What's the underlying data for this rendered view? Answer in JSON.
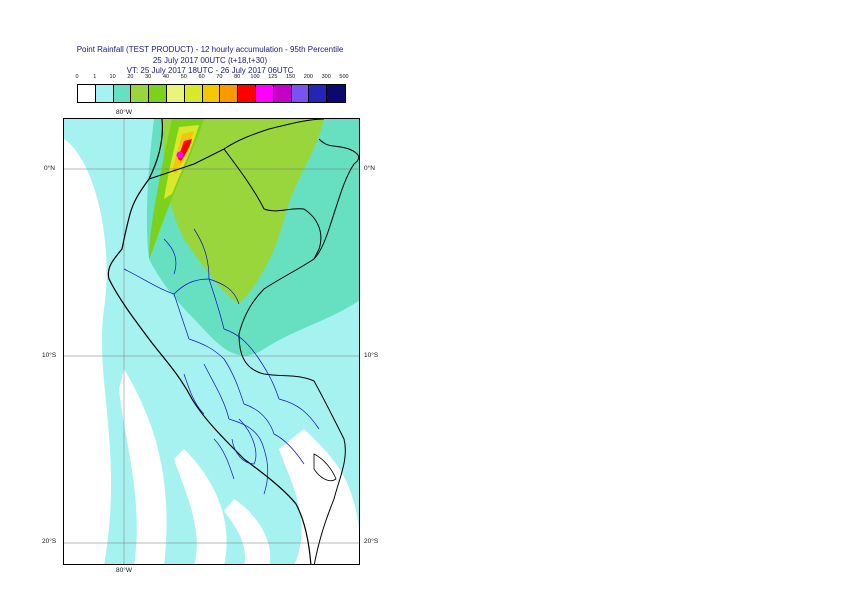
{
  "title": {
    "line1": "Point Rainfall (TEST PRODUCT) - 12 hourly accumulation - 95th Percentile",
    "line2": "25 July 2017 00UTC (t+18,t+30)",
    "line3": "VT: 25 July 2017 18UTC - 26 July 2017 06UTC"
  },
  "legend": {
    "ticks": [
      "0",
      "1",
      "10",
      "20",
      "30",
      "40",
      "50",
      "60",
      "70",
      "80",
      "100",
      "125",
      "150",
      "200",
      "300",
      "500"
    ],
    "colors": [
      "#ffffff",
      "#a6f2f0",
      "#66e0c0",
      "#99d63c",
      "#7cd11a",
      "#e9f47a",
      "#d7e92a",
      "#f3c800",
      "#f79a00",
      "#ff0000",
      "#ff00ff",
      "#c400c4",
      "#7a52f0",
      "#2424b8",
      "#0a0a6e"
    ]
  },
  "map": {
    "lon_top_label": "80°W",
    "lon_bottom_label": "80°W",
    "lat_labels_left": [
      "0°N",
      "10°S",
      "20°S"
    ],
    "lat_labels_right": [
      "0°N",
      "10°S",
      "20°S"
    ]
  }
}
